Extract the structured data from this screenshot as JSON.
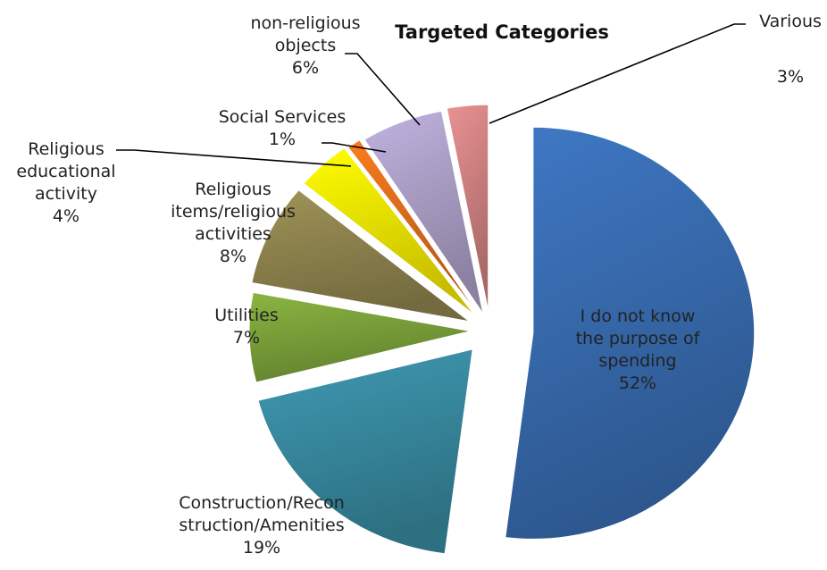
{
  "chart_data": {
    "type": "pie",
    "title": "Targeted Categories",
    "exploded": true,
    "slices": [
      {
        "label": "I do not know the purpose of spending",
        "value": 52,
        "value_label": "52%",
        "color": "#3a6fb6"
      },
      {
        "label": "Construction/Reconstruction/Amenities",
        "value": 19,
        "value_label": "19%",
        "color": "#3a8fa6"
      },
      {
        "label": "Utilities",
        "value": 7,
        "value_label": "7%",
        "color": "#80a83c"
      },
      {
        "label": "Religious items/religious activities",
        "value": 8,
        "value_label": "8%",
        "color": "#938851"
      },
      {
        "label": "Religious educational activity",
        "value": 4,
        "value_label": "4%",
        "color": "#fff200"
      },
      {
        "label": "Social Services",
        "value": 1,
        "value_label": "1%",
        "color": "#e8731c"
      },
      {
        "label": "non-religious objects",
        "value": 6,
        "value_label": "6%",
        "color": "#b3a6cf"
      },
      {
        "label": "Various",
        "value": 3,
        "value_label": "3%",
        "color": "#d98787"
      }
    ]
  }
}
